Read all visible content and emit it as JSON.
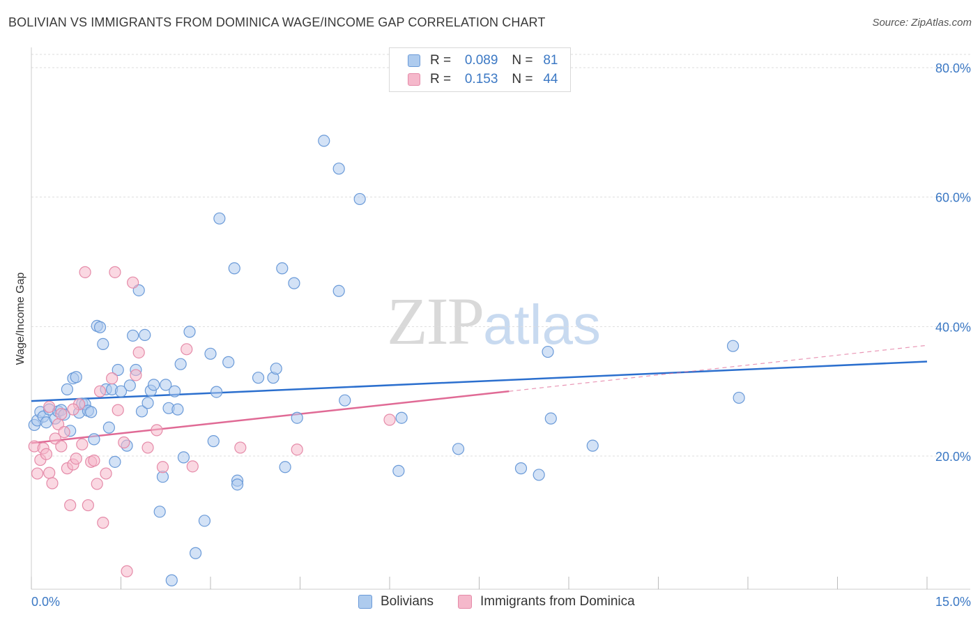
{
  "title": "BOLIVIAN VS IMMIGRANTS FROM DOMINICA WAGE/INCOME GAP CORRELATION CHART",
  "source": "Source: ZipAtlas.com",
  "watermark": {
    "zip": "ZIP",
    "atlas": "atlas"
  },
  "legend": {
    "rows": [
      {
        "r_label": "R =",
        "r_value": "0.089",
        "n_label": "N =",
        "n_value": "81"
      },
      {
        "r_label": "R =",
        "r_value": "0.153",
        "n_label": "N =",
        "n_value": "44"
      }
    ]
  },
  "bottom_legend": {
    "series1": "Bolivians",
    "series2": "Immigrants from Dominica"
  },
  "colors": {
    "blue_fill": "#aecbee",
    "blue_stroke": "#6a9ad8",
    "blue_line": "#2b6fce",
    "pink_fill": "#f5b8cb",
    "pink_stroke": "#e58aa8",
    "pink_line": "#e06a95",
    "tick": "#3b78c4",
    "grid": "#dddddd"
  },
  "chart_data": {
    "type": "scatter",
    "title": "BOLIVIAN VS IMMIGRANTS FROM DOMINICA WAGE/INCOME GAP CORRELATION CHART",
    "xlabel": "",
    "ylabel": "Wage/Income Gap",
    "xlim": [
      0,
      15
    ],
    "ylim": [
      0,
      82
    ],
    "x_tick_labels": [
      "0.0%",
      "15.0%"
    ],
    "y_ticks": [
      20,
      40,
      60,
      80
    ],
    "y_tick_labels": [
      "20.0%",
      "40.0%",
      "60.0%",
      "80.0%"
    ],
    "grid": true,
    "series": [
      {
        "name": "Bolivians",
        "R": 0.089,
        "N": 81,
        "points": [
          [
            0.05,
            24.8
          ],
          [
            0.1,
            25.5
          ],
          [
            0.15,
            26.8
          ],
          [
            0.2,
            26.1
          ],
          [
            0.25,
            25.2
          ],
          [
            0.3,
            27.2
          ],
          [
            0.4,
            25.8
          ],
          [
            0.45,
            26.9
          ],
          [
            0.5,
            27.1
          ],
          [
            0.55,
            26.4
          ],
          [
            0.6,
            30.3
          ],
          [
            0.65,
            23.9
          ],
          [
            0.7,
            32.0
          ],
          [
            0.75,
            32.2
          ],
          [
            0.8,
            26.7
          ],
          [
            0.85,
            28.1
          ],
          [
            0.9,
            28.0
          ],
          [
            0.95,
            27.0
          ],
          [
            1.0,
            26.8
          ],
          [
            1.05,
            22.6
          ],
          [
            1.1,
            40.1
          ],
          [
            1.15,
            39.9
          ],
          [
            1.2,
            37.3
          ],
          [
            1.25,
            30.3
          ],
          [
            1.3,
            24.4
          ],
          [
            1.35,
            30.3
          ],
          [
            1.4,
            19.1
          ],
          [
            1.45,
            33.3
          ],
          [
            1.5,
            30.0
          ],
          [
            1.6,
            21.6
          ],
          [
            1.65,
            30.9
          ],
          [
            1.7,
            38.6
          ],
          [
            1.75,
            33.3
          ],
          [
            1.8,
            45.6
          ],
          [
            1.85,
            26.9
          ],
          [
            1.9,
            38.7
          ],
          [
            1.95,
            28.2
          ],
          [
            2.0,
            30.1
          ],
          [
            2.05,
            31.0
          ],
          [
            2.15,
            11.4
          ],
          [
            2.2,
            16.8
          ],
          [
            2.25,
            31.0
          ],
          [
            2.3,
            27.4
          ],
          [
            2.35,
            0.8
          ],
          [
            2.4,
            30.0
          ],
          [
            2.45,
            27.2
          ],
          [
            2.5,
            34.2
          ],
          [
            2.55,
            19.8
          ],
          [
            2.65,
            39.2
          ],
          [
            2.75,
            5.0
          ],
          [
            2.9,
            10.0
          ],
          [
            3.0,
            35.8
          ],
          [
            3.05,
            22.3
          ],
          [
            3.1,
            29.9
          ],
          [
            3.15,
            56.7
          ],
          [
            3.3,
            34.5
          ],
          [
            3.4,
            49.0
          ],
          [
            3.45,
            16.2
          ],
          [
            3.45,
            15.6
          ],
          [
            3.8,
            32.1
          ],
          [
            4.05,
            32.1
          ],
          [
            4.1,
            33.5
          ],
          [
            4.2,
            49.0
          ],
          [
            4.25,
            18.3
          ],
          [
            4.4,
            46.7
          ],
          [
            4.45,
            25.9
          ],
          [
            4.9,
            68.7
          ],
          [
            5.15,
            64.4
          ],
          [
            5.15,
            45.5
          ],
          [
            5.25,
            28.6
          ],
          [
            5.5,
            59.7
          ],
          [
            6.2,
            25.9
          ],
          [
            6.15,
            17.7
          ],
          [
            7.15,
            21.1
          ],
          [
            8.2,
            18.1
          ],
          [
            8.5,
            17.1
          ],
          [
            8.65,
            36.1
          ],
          [
            8.7,
            25.8
          ],
          [
            9.4,
            21.6
          ],
          [
            11.75,
            37.0
          ],
          [
            11.85,
            29.0
          ]
        ]
      },
      {
        "name": "Immigrants from Dominica",
        "R": 0.153,
        "N": 44,
        "points": [
          [
            0.05,
            21.5
          ],
          [
            0.1,
            17.3
          ],
          [
            0.15,
            19.4
          ],
          [
            0.2,
            21.2
          ],
          [
            0.25,
            20.3
          ],
          [
            0.3,
            17.4
          ],
          [
            0.35,
            15.8
          ],
          [
            0.4,
            22.7
          ],
          [
            0.45,
            24.9
          ],
          [
            0.5,
            21.5
          ],
          [
            0.55,
            23.7
          ],
          [
            0.6,
            18.1
          ],
          [
            0.65,
            12.4
          ],
          [
            0.7,
            18.7
          ],
          [
            0.75,
            19.6
          ],
          [
            0.8,
            28.0
          ],
          [
            0.85,
            21.8
          ],
          [
            0.9,
            48.4
          ],
          [
            0.95,
            12.4
          ],
          [
            1.0,
            19.1
          ],
          [
            1.05,
            19.3
          ],
          [
            1.1,
            15.7
          ],
          [
            1.15,
            30.0
          ],
          [
            1.2,
            9.7
          ],
          [
            1.25,
            17.3
          ],
          [
            1.35,
            32.0
          ],
          [
            1.4,
            48.4
          ],
          [
            1.45,
            27.1
          ],
          [
            1.55,
            22.1
          ],
          [
            1.6,
            2.2
          ],
          [
            1.7,
            46.8
          ],
          [
            1.75,
            32.5
          ],
          [
            1.8,
            36.0
          ],
          [
            1.95,
            21.3
          ],
          [
            2.1,
            24.0
          ],
          [
            2.2,
            18.3
          ],
          [
            2.6,
            36.5
          ],
          [
            2.7,
            18.4
          ],
          [
            3.5,
            21.3
          ],
          [
            4.45,
            21.0
          ],
          [
            6.0,
            25.6
          ],
          [
            0.3,
            27.6
          ],
          [
            0.5,
            26.5
          ],
          [
            0.7,
            27.2
          ]
        ]
      }
    ],
    "trend_lines": [
      {
        "series": "Bolivians",
        "x": [
          0,
          15
        ],
        "y": [
          28.5,
          34.6
        ],
        "style": "solid"
      },
      {
        "series": "Immigrants from Dominica",
        "x": [
          0,
          8.0
        ],
        "y": [
          22.0,
          30.0
        ],
        "style": "solid"
      },
      {
        "series": "Immigrants from Dominica",
        "x": [
          8.0,
          15
        ],
        "y": [
          30.0,
          37.1
        ],
        "style": "dashed"
      }
    ]
  }
}
